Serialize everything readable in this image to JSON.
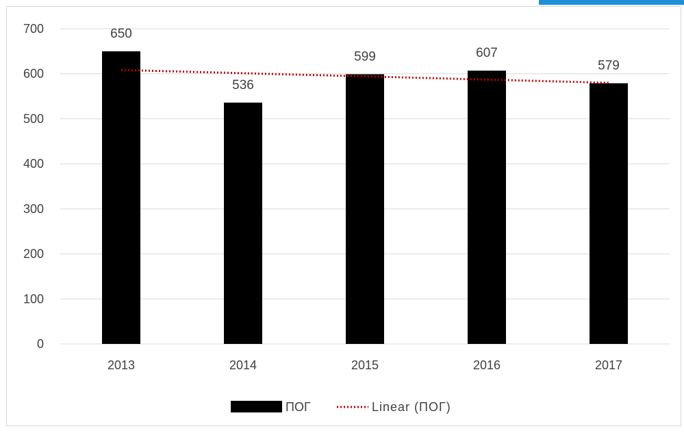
{
  "chart_data": {
    "type": "bar",
    "categories": [
      "2013",
      "2014",
      "2015",
      "2016",
      "2017"
    ],
    "series": [
      {
        "name": "ПОГ",
        "values": [
          650,
          536,
          599,
          607,
          579
        ],
        "color": "#000000"
      }
    ],
    "trendline": {
      "name": "Linear (ПОГ)",
      "kind": "linear",
      "color": "#c00000",
      "style": "dotted"
    },
    "data_labels": [
      "650",
      "536",
      "599",
      "607",
      "579"
    ],
    "title": "",
    "xlabel": "",
    "ylabel": "",
    "ylim": [
      0,
      700
    ],
    "yticks": [
      0,
      100,
      200,
      300,
      400,
      500,
      600,
      700
    ],
    "grid": true,
    "legend_position": "bottom",
    "accent_corner_color": "#1e90d8"
  }
}
